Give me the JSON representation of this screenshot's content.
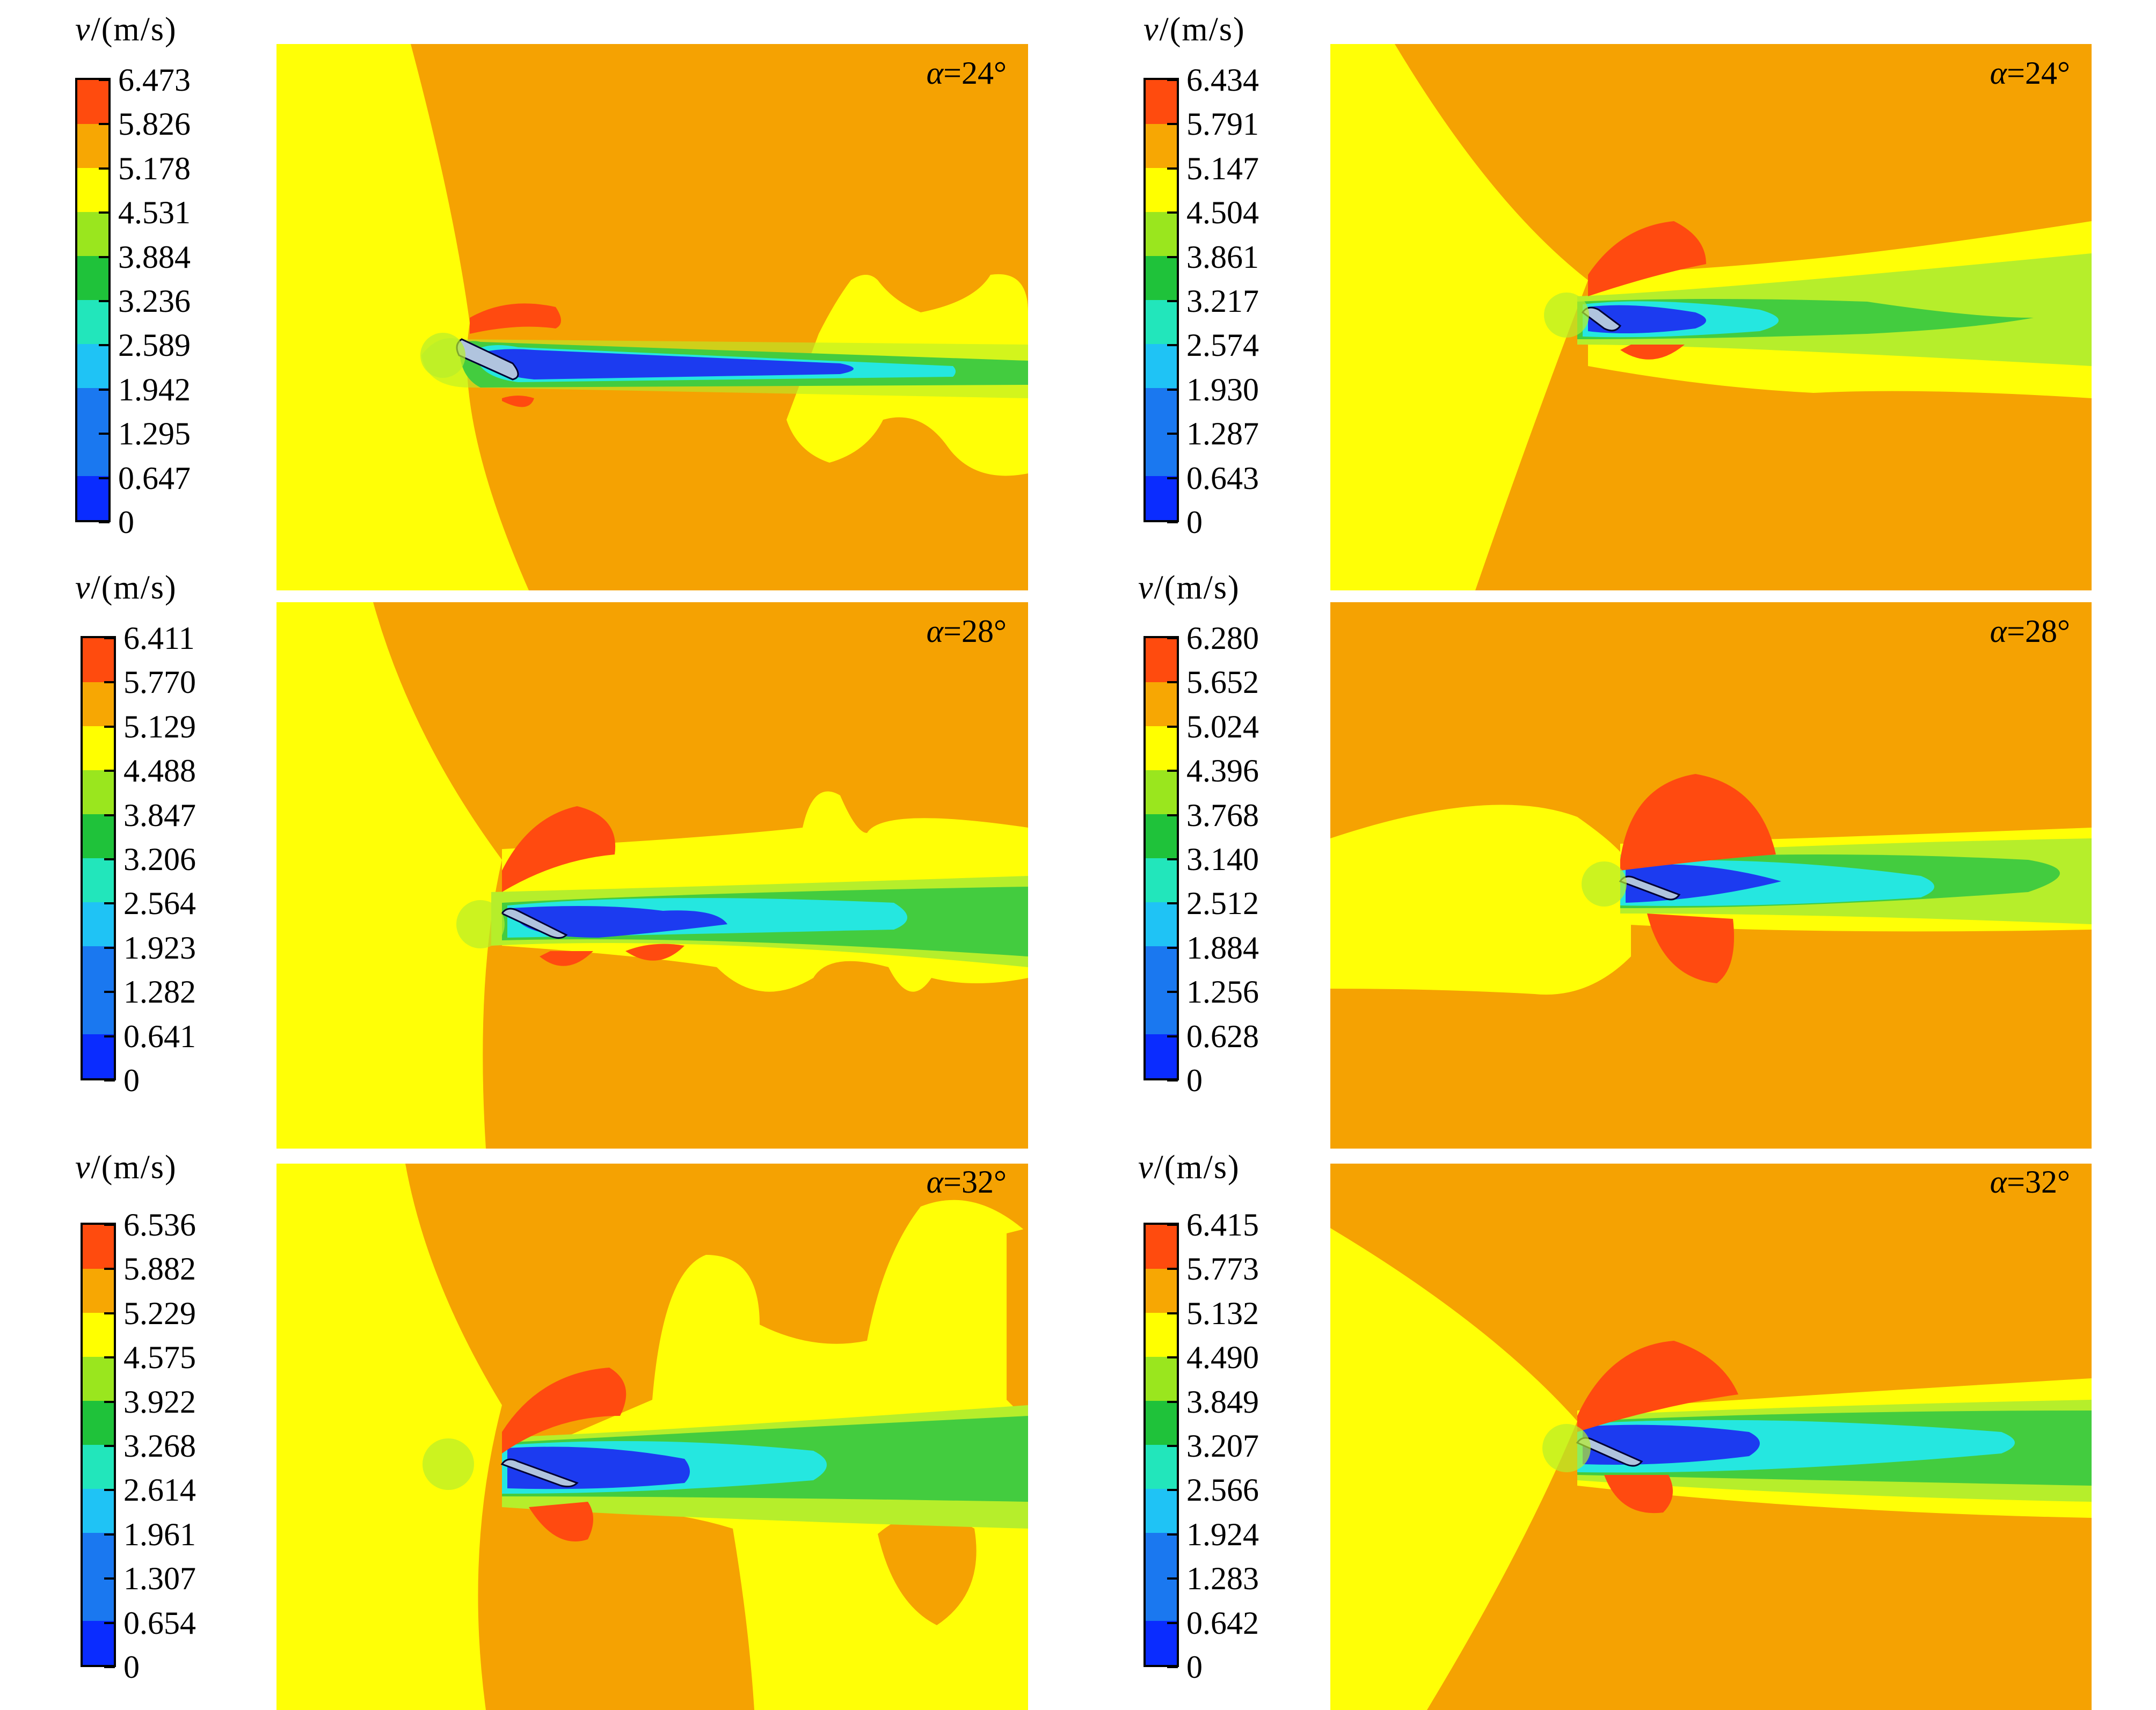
{
  "colorbar_colors": [
    "#0a2cff",
    "#1a78f0",
    "#1fc3f5",
    "#22e6bb",
    "#1fc23a",
    "#9ae61e",
    "#ffff00",
    "#f7a703",
    "#ff4b0e"
  ],
  "colors": {
    "background": "#ffffff",
    "orange": "#f5a202",
    "yellow": "#ffff06",
    "red": "#ff4a10",
    "light_green": "#b6ee2b",
    "green": "#43cc3f",
    "cyan": "#25e7e0",
    "blue": "#1c3bf0"
  },
  "panels": [
    {
      "title_var": "v",
      "title_unit": "/(m/s)",
      "angle_symbol": "α",
      "angle_value": "=24°",
      "ticks": [
        "6.473",
        "5.826",
        "5.178",
        "4.531",
        "3.884",
        "3.236",
        "2.589",
        "1.942",
        "1.295",
        "0.647",
        "0"
      ]
    },
    {
      "title_var": "v",
      "title_unit": "/(m/s)",
      "angle_symbol": "α",
      "angle_value": "=24°",
      "ticks": [
        "6.434",
        "5.791",
        "5.147",
        "4.504",
        "3.861",
        "3.217",
        "2.574",
        "1.930",
        "1.287",
        "0.643",
        "0"
      ]
    },
    {
      "title_var": "v",
      "title_unit": "/(m/s)",
      "angle_symbol": "α",
      "angle_value": "=28°",
      "ticks": [
        "6.411",
        "5.770",
        "5.129",
        "4.488",
        "3.847",
        "3.206",
        "2.564",
        "1.923",
        "1.282",
        "0.641",
        "0"
      ]
    },
    {
      "title_var": "v",
      "title_unit": "/(m/s)",
      "angle_symbol": "α",
      "angle_value": "=28°",
      "ticks": [
        "6.280",
        "5.652",
        "5.024",
        "4.396",
        "3.768",
        "3.140",
        "2.512",
        "1.884",
        "1.256",
        "0.628",
        "0"
      ]
    },
    {
      "title_var": "v",
      "title_unit": "/(m/s)",
      "angle_symbol": "α",
      "angle_value": "=32°",
      "ticks": [
        "6.536",
        "5.882",
        "5.229",
        "4.575",
        "3.922",
        "3.268",
        "2.614",
        "1.961",
        "1.307",
        "0.654",
        "0"
      ]
    },
    {
      "title_var": "v",
      "title_unit": "/(m/s)",
      "angle_symbol": "α",
      "angle_value": "=32°",
      "ticks": [
        "6.415",
        "5.773",
        "5.132",
        "4.490",
        "3.849",
        "3.207",
        "2.566",
        "1.924",
        "1.283",
        "0.642",
        "0"
      ]
    }
  ]
}
